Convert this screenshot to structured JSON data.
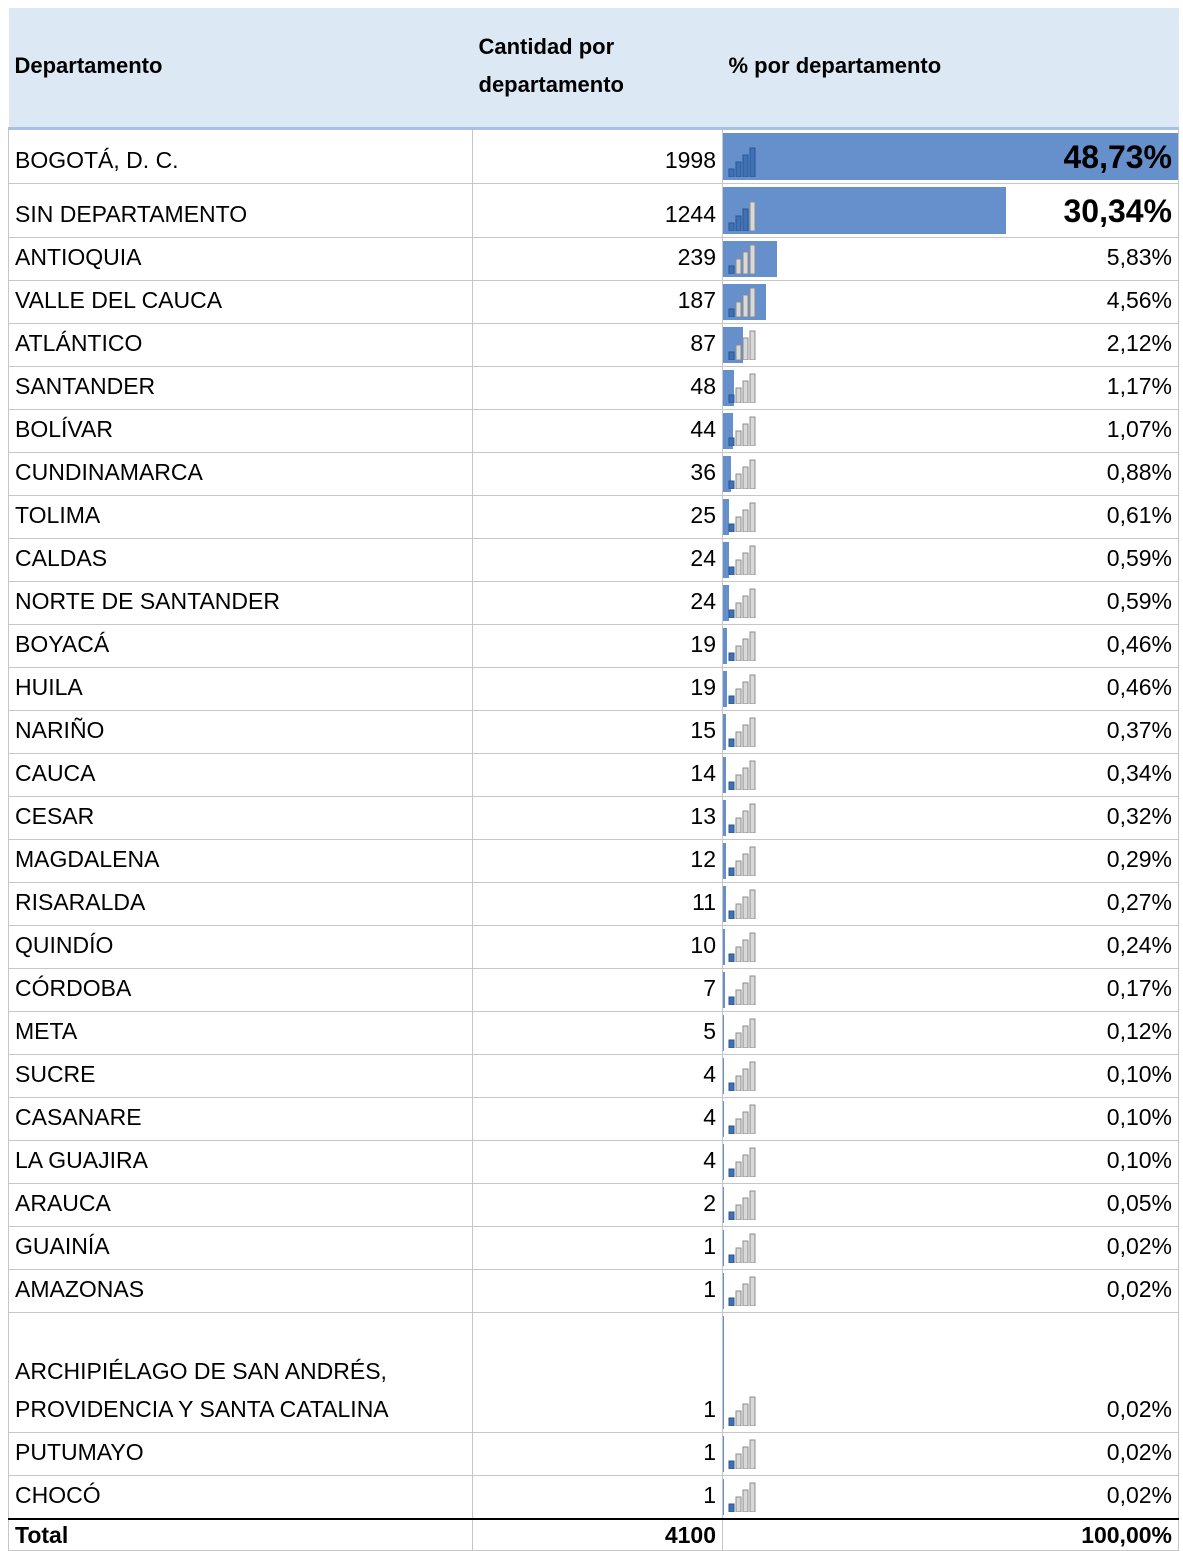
{
  "table": {
    "header": {
      "department": "Departamento",
      "count": "Cantidad por departamento",
      "percent": "% por departamento"
    },
    "rows": [
      {
        "name": "BOGOTÁ, D. C.",
        "count": 1998,
        "percent": 48.73,
        "percent_label": "48,73%"
      },
      {
        "name": "SIN DEPARTAMENTO",
        "count": 1244,
        "percent": 30.34,
        "percent_label": "30,34%"
      },
      {
        "name": "ANTIOQUIA",
        "count": 239,
        "percent": 5.83,
        "percent_label": "5,83%"
      },
      {
        "name": "VALLE DEL CAUCA",
        "count": 187,
        "percent": 4.56,
        "percent_label": "4,56%"
      },
      {
        "name": "ATLÁNTICO",
        "count": 87,
        "percent": 2.12,
        "percent_label": "2,12%"
      },
      {
        "name": "SANTANDER",
        "count": 48,
        "percent": 1.17,
        "percent_label": "1,17%"
      },
      {
        "name": "BOLÍVAR",
        "count": 44,
        "percent": 1.07,
        "percent_label": "1,07%"
      },
      {
        "name": "CUNDINAMARCA",
        "count": 36,
        "percent": 0.88,
        "percent_label": "0,88%"
      },
      {
        "name": "TOLIMA",
        "count": 25,
        "percent": 0.61,
        "percent_label": "0,61%"
      },
      {
        "name": "CALDAS",
        "count": 24,
        "percent": 0.59,
        "percent_label": "0,59%"
      },
      {
        "name": "NORTE DE SANTANDER",
        "count": 24,
        "percent": 0.59,
        "percent_label": "0,59%"
      },
      {
        "name": "BOYACÁ",
        "count": 19,
        "percent": 0.46,
        "percent_label": "0,46%"
      },
      {
        "name": "HUILA",
        "count": 19,
        "percent": 0.46,
        "percent_label": "0,46%"
      },
      {
        "name": "NARIÑO",
        "count": 15,
        "percent": 0.37,
        "percent_label": "0,37%"
      },
      {
        "name": "CAUCA",
        "count": 14,
        "percent": 0.34,
        "percent_label": "0,34%"
      },
      {
        "name": "CESAR",
        "count": 13,
        "percent": 0.32,
        "percent_label": "0,32%"
      },
      {
        "name": "MAGDALENA",
        "count": 12,
        "percent": 0.29,
        "percent_label": "0,29%"
      },
      {
        "name": "RISARALDA",
        "count": 11,
        "percent": 0.27,
        "percent_label": "0,27%"
      },
      {
        "name": "QUINDÍO",
        "count": 10,
        "percent": 0.24,
        "percent_label": "0,24%"
      },
      {
        "name": "CÓRDOBA",
        "count": 7,
        "percent": 0.17,
        "percent_label": "0,17%"
      },
      {
        "name": "META",
        "count": 5,
        "percent": 0.12,
        "percent_label": "0,12%"
      },
      {
        "name": "SUCRE",
        "count": 4,
        "percent": 0.1,
        "percent_label": "0,10%"
      },
      {
        "name": "CASANARE",
        "count": 4,
        "percent": 0.1,
        "percent_label": "0,10%"
      },
      {
        "name": "LA GUAJIRA",
        "count": 4,
        "percent": 0.1,
        "percent_label": "0,10%"
      },
      {
        "name": "ARAUCA",
        "count": 2,
        "percent": 0.05,
        "percent_label": "0,05%"
      },
      {
        "name": "GUAINÍA",
        "count": 1,
        "percent": 0.02,
        "percent_label": "0,02%"
      },
      {
        "name": "AMAZONAS",
        "count": 1,
        "percent": 0.02,
        "percent_label": "0,02%"
      },
      {
        "name": "ARCHIPIÉLAGO DE SAN ANDRÉS, PROVIDENCIA Y SANTA CATALINA",
        "count": 1,
        "percent": 0.02,
        "percent_label": "0,02%"
      },
      {
        "name": "PUTUMAYO",
        "count": 1,
        "percent": 0.02,
        "percent_label": "0,02%"
      },
      {
        "name": "CHOCÓ",
        "count": 1,
        "percent": 0.02,
        "percent_label": "0,02%"
      }
    ],
    "total": {
      "label": "Total",
      "count": 4100,
      "percent_label": "100,00%"
    }
  }
}
